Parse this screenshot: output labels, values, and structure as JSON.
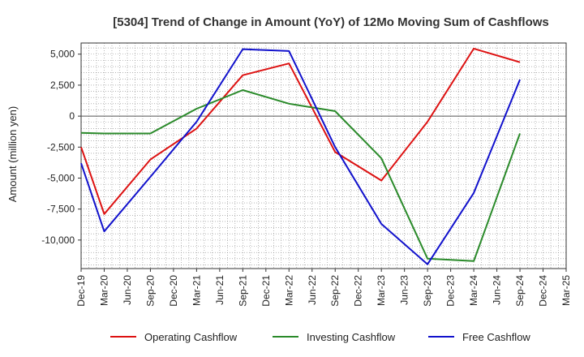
{
  "chart_data": {
    "type": "line",
    "title": "[5304]  Trend of Change in Amount (YoY) of 12Mo Moving Sum of Cashflows",
    "xlabel": "",
    "ylabel": "Amount (million yen)",
    "categories": [
      "Dec-19",
      "Mar-20",
      "Jun-20",
      "Sep-20",
      "Dec-20",
      "Mar-21",
      "Jun-21",
      "Sep-21",
      "Dec-21",
      "Mar-22",
      "Jun-22",
      "Sep-22",
      "Dec-22",
      "Mar-23",
      "Jun-23",
      "Sep-23",
      "Dec-23",
      "Mar-24",
      "Jun-24",
      "Sep-24",
      "Dec-24",
      "Mar-25"
    ],
    "ylim": [
      -12300,
      5900
    ],
    "yticks": [
      5000,
      2500,
      0,
      -2500,
      -5000,
      -7500,
      -10000
    ],
    "ytick_labels": [
      "5,000",
      "2,500",
      "0",
      "-2,500",
      "-5,000",
      "-7,500",
      "-10,000"
    ],
    "grid": true,
    "legend_position": "bottom",
    "series": [
      {
        "name": "Operating Cashflow",
        "color": "#dd1111",
        "values": [
          -2500,
          -7900,
          null,
          -3500,
          null,
          -1000,
          null,
          3300,
          null,
          4250,
          null,
          -2900,
          null,
          -5200,
          null,
          -450,
          null,
          5450,
          null,
          4350,
          null,
          null
        ]
      },
      {
        "name": "Investing Cashflow",
        "color": "#2a8a2a",
        "values": [
          -1350,
          -1400,
          null,
          -1400,
          null,
          600,
          null,
          2100,
          null,
          1000,
          null,
          400,
          null,
          -3400,
          null,
          -11500,
          null,
          -11700,
          null,
          -1400,
          null,
          null
        ]
      },
      {
        "name": "Free Cashflow",
        "color": "#1111cc",
        "values": [
          -3800,
          -9300,
          null,
          -4900,
          null,
          -450,
          null,
          5400,
          null,
          5250,
          null,
          -2500,
          null,
          -8700,
          null,
          -11950,
          null,
          -6200,
          null,
          2950,
          null,
          null
        ]
      }
    ]
  }
}
